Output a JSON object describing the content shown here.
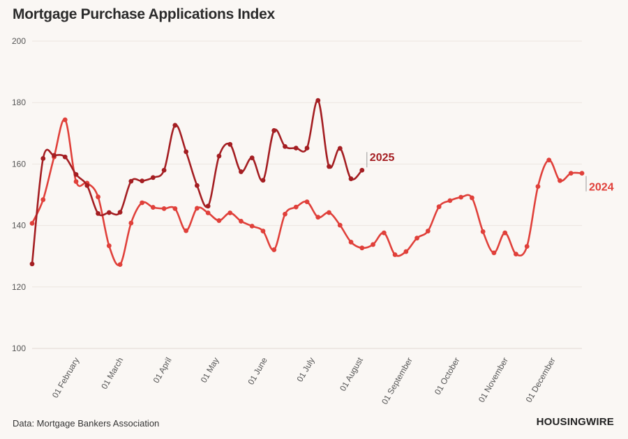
{
  "chart_data": {
    "type": "line",
    "title": "Mortgage Purchase Applications Index",
    "source": "Data: Mortgage Bankers Association",
    "brand": "HOUSINGWIRE",
    "ylim": [
      100,
      200
    ],
    "yticks": [
      100,
      120,
      140,
      160,
      180,
      200
    ],
    "xlim": [
      0,
      50
    ],
    "xticks": [
      {
        "label": "01 February",
        "week": 4.3
      },
      {
        "label": "01 March",
        "week": 8.3
      },
      {
        "label": "01 April",
        "week": 12.7
      },
      {
        "label": "01 May",
        "week": 17.0
      },
      {
        "label": "01 June",
        "week": 21.4
      },
      {
        "label": "01 July",
        "week": 25.7
      },
      {
        "label": "01 August",
        "week": 30.1
      },
      {
        "label": "01 September",
        "week": 34.6
      },
      {
        "label": "01 October",
        "week": 38.9
      },
      {
        "label": "01 November",
        "week": 43.3
      },
      {
        "label": "01 December",
        "week": 47.6
      }
    ],
    "grid": true,
    "series": [
      {
        "name": "2025",
        "color": "#a41e22",
        "x": [
          0,
          1,
          2,
          3,
          4,
          5,
          6,
          7,
          8,
          9,
          10,
          11,
          12,
          13,
          14,
          15,
          16,
          17,
          18,
          19,
          20,
          21,
          22,
          23,
          24,
          25,
          26,
          27,
          28,
          29,
          30
        ],
        "values": [
          127.5,
          161.8,
          162.8,
          162.3,
          156.6,
          153.0,
          143.9,
          144.2,
          144.3,
          154.4,
          154.5,
          155.6,
          158.0,
          172.6,
          164.0,
          153.0,
          146.3,
          162.6,
          166.4,
          157.5,
          162.0,
          154.7,
          170.9,
          165.7,
          165.2,
          165.2,
          180.7,
          159.2,
          165.1,
          155.2,
          158.0
        ]
      },
      {
        "name": "2024",
        "color": "#e0403a",
        "x": [
          0,
          1,
          2,
          3,
          4,
          5,
          6,
          7,
          8,
          9,
          10,
          11,
          12,
          13,
          14,
          15,
          16,
          17,
          18,
          19,
          20,
          21,
          22,
          23,
          24,
          25,
          26,
          27,
          28,
          29,
          30,
          31,
          32,
          33,
          34,
          35,
          36,
          37,
          38,
          39,
          40,
          41,
          42,
          43,
          44,
          45,
          46,
          47,
          48,
          49
        ],
        "values": [
          140.7,
          148.4,
          162.3,
          174.4,
          154.3,
          153.8,
          149.3,
          133.4,
          127.3,
          140.8,
          147.4,
          145.9,
          145.5,
          145.5,
          138.3,
          145.6,
          144.1,
          141.6,
          144.1,
          141.4,
          139.8,
          138.2,
          132.1,
          143.7,
          146.0,
          147.7,
          142.7,
          144.2,
          140.1,
          134.6,
          132.7,
          133.8,
          137.6,
          130.5,
          131.5,
          135.9,
          138.2,
          146.1,
          148.1,
          149.2,
          149.0,
          138.0,
          131.1,
          137.6,
          130.7,
          133.2,
          152.7,
          161.3,
          154.6,
          157.0
        ]
      }
    ],
    "end_extra": {
      "2024_last_x": 50,
      "2024_last_value": 157.0
    }
  }
}
